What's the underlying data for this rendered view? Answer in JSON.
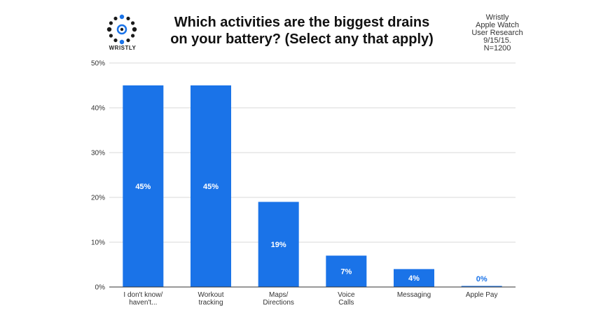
{
  "brand": {
    "logo_text": "WRISTLY"
  },
  "title_lines": [
    "Which activities are the biggest drains",
    "on your battery? (Select any that apply)"
  ],
  "note_lines": [
    "Wristly",
    "Apple Watch",
    "User Research",
    "9/15/15.",
    "N=1200"
  ],
  "colors": {
    "bar": "#1a73e8",
    "grid": "#d9d9d9",
    "axis": "#333333",
    "logo_dot": "#1a1a1a",
    "logo_accent": "#1a73e8"
  },
  "chart_data": {
    "type": "bar",
    "categories": [
      [
        "I don't know/",
        "haven't..."
      ],
      [
        "Workout",
        "tracking"
      ],
      [
        "Maps/",
        "Directions"
      ],
      [
        "Voice",
        "Calls"
      ],
      [
        "Messaging"
      ],
      [
        "Apple Pay"
      ]
    ],
    "values": [
      45,
      45,
      19,
      7,
      4,
      0
    ],
    "data_labels": [
      "45%",
      "45%",
      "19%",
      "7%",
      "4%",
      "0%"
    ],
    "yticks": [
      "0%",
      "10%",
      "20%",
      "30%",
      "40%",
      "50%"
    ],
    "ylim": [
      0,
      50
    ],
    "grid": true,
    "xlabel": "",
    "ylabel": ""
  }
}
